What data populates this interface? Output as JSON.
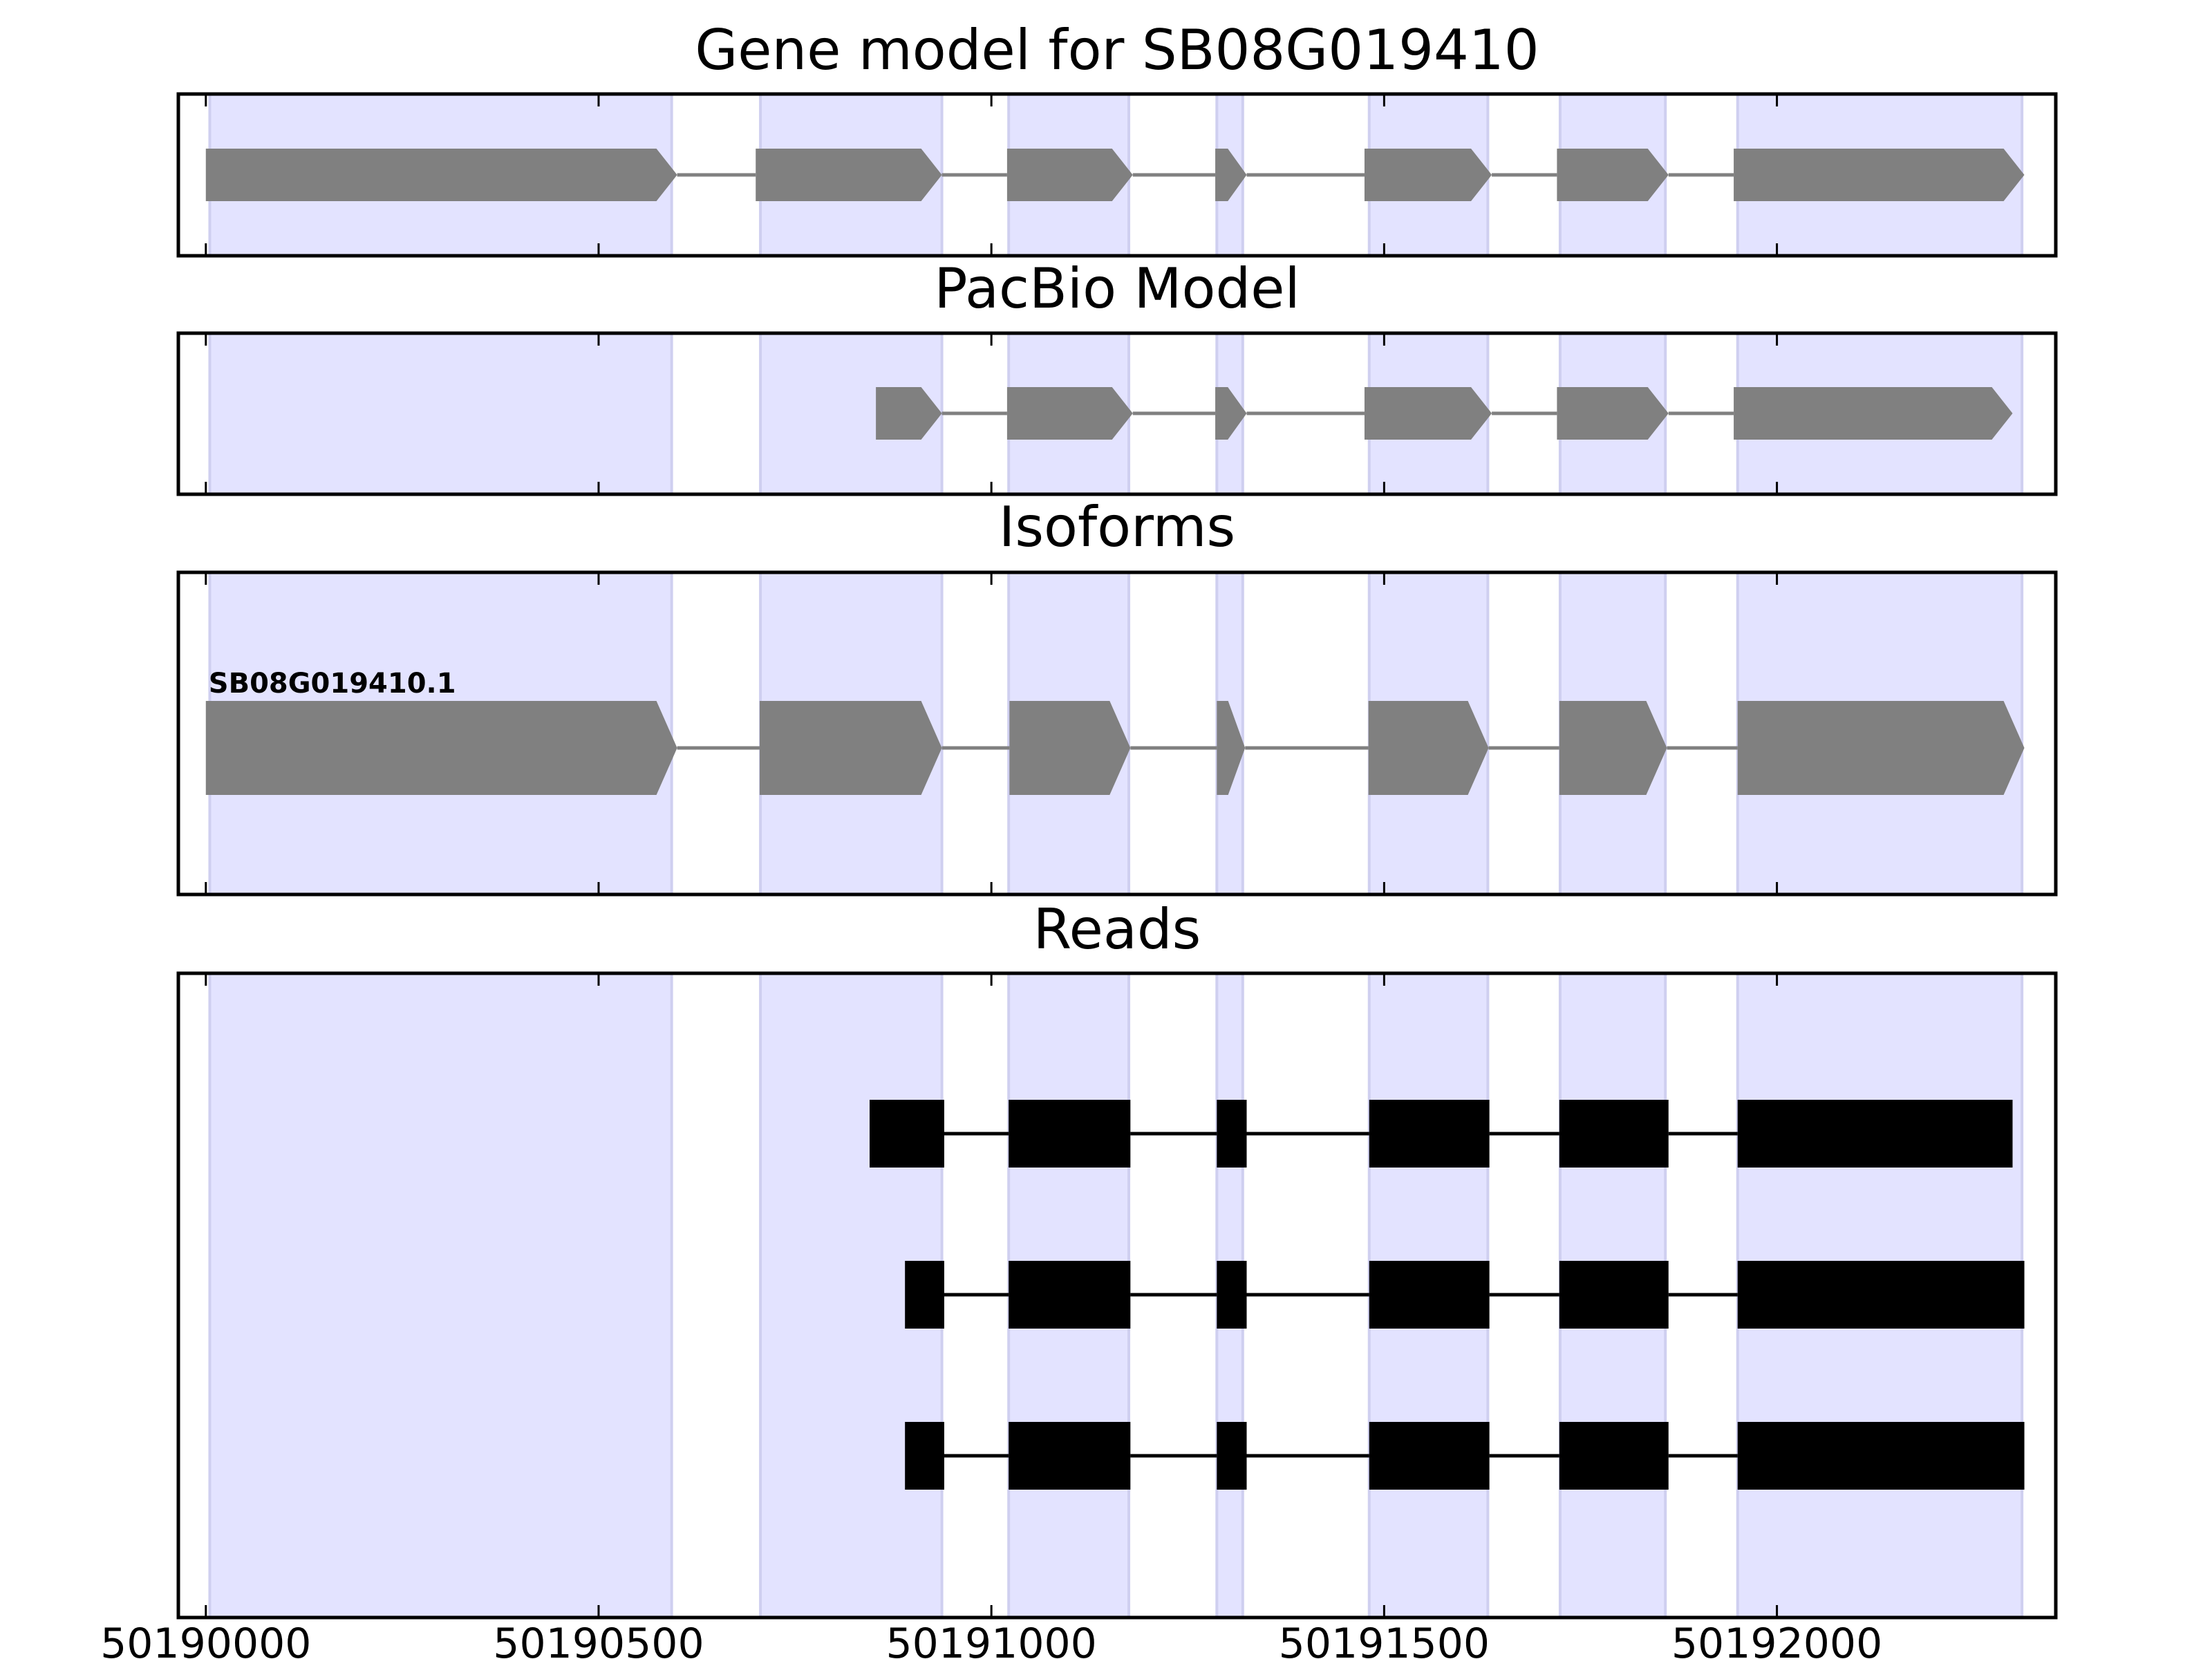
{
  "chart_data": {
    "type": "gene-structure",
    "x_ticks": [
      50190000,
      50190500,
      50191000,
      50191500,
      50192000
    ],
    "xlim": [
      50189965,
      50192355
    ],
    "exon_regions": [
      [
        50190005,
        50190593
      ],
      [
        50190706,
        50190937
      ],
      [
        50191022,
        50191175
      ],
      [
        50191287,
        50191320
      ],
      [
        50191481,
        50191632
      ],
      [
        50191724,
        50191858
      ],
      [
        50191950,
        50192312
      ]
    ],
    "panels": [
      {
        "id": "gene-model",
        "title": "Gene model for SB08G019410",
        "style": "arrow",
        "transcripts": [
          {
            "label": "",
            "exons": [
              [
                50190000,
                50190600
              ],
              [
                50190700,
                50190937
              ],
              [
                50191020,
                50191180
              ],
              [
                50191285,
                50191325
              ],
              [
                50191475,
                50191637
              ],
              [
                50191720,
                50191862
              ],
              [
                50191945,
                50192315
              ]
            ]
          }
        ]
      },
      {
        "id": "pacbio-model",
        "title": "PacBio Model",
        "style": "arrow",
        "transcripts": [
          {
            "label": "",
            "exons": [
              [
                50190853,
                50190937
              ],
              [
                50191020,
                50191180
              ],
              [
                50191285,
                50191325
              ],
              [
                50191475,
                50191637
              ],
              [
                50191720,
                50191862
              ],
              [
                50191945,
                50192300
              ]
            ]
          }
        ]
      },
      {
        "id": "isoforms",
        "title": "Isoforms",
        "style": "arrow",
        "transcripts": [
          {
            "label": "SB08G019410.1",
            "exons": [
              [
                50190000,
                50190600
              ],
              [
                50190705,
                50190937
              ],
              [
                50191023,
                50191177
              ],
              [
                50191287,
                50191323
              ],
              [
                50191480,
                50191633
              ],
              [
                50191723,
                50191860
              ],
              [
                50191950,
                50192315
              ]
            ]
          }
        ]
      },
      {
        "id": "reads",
        "title": "Reads",
        "style": "box",
        "transcripts": [
          {
            "label": "",
            "exons": [
              [
                50190845,
                50190940
              ],
              [
                50191022,
                50191177
              ],
              [
                50191287,
                50191325
              ],
              [
                50191481,
                50191634
              ],
              [
                50191723,
                50191862
              ],
              [
                50191950,
                50192300
              ]
            ]
          },
          {
            "label": "",
            "exons": [
              [
                50190890,
                50190940
              ],
              [
                50191022,
                50191177
              ],
              [
                50191287,
                50191325
              ],
              [
                50191481,
                50191634
              ],
              [
                50191723,
                50191862
              ],
              [
                50191950,
                50192315
              ]
            ]
          },
          {
            "label": "",
            "exons": [
              [
                50190890,
                50190940
              ],
              [
                50191022,
                50191177
              ],
              [
                50191287,
                50191325
              ],
              [
                50191481,
                50191634
              ],
              [
                50191723,
                50191862
              ],
              [
                50191950,
                50192315
              ]
            ]
          }
        ]
      }
    ],
    "colors": {
      "exon_region": "#e3e3ff",
      "exon_region_edge": "#cfcff0",
      "model_exon": "#808080",
      "model_intron": "#808080",
      "read_exon": "#000000",
      "read_intron": "#000000"
    }
  }
}
